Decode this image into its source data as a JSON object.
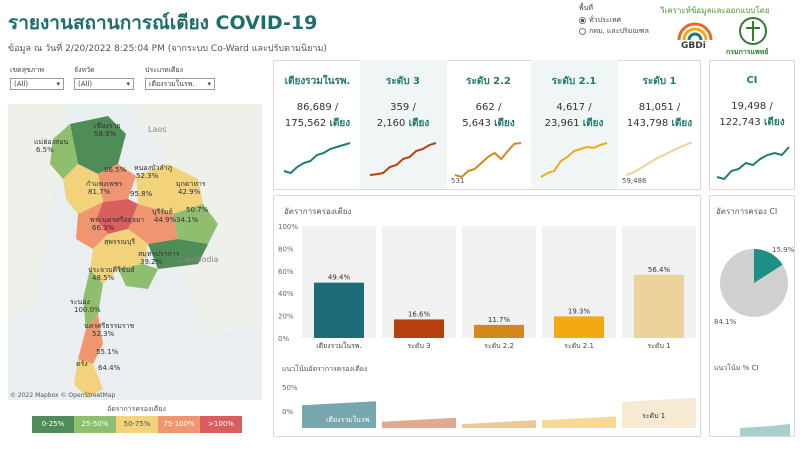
{
  "header": {
    "title": "รายงานสถานการณ์เตียง COVID-19",
    "subtitle": "ข้อมูล ณ วันที่ 2/20/2022 8:25:04 PM  (จากระบบ Co-Ward และปรับตามนิยาม)",
    "area_label": "พื้นที่",
    "area_options": [
      "ทั่วประเทศ",
      "กทม. และปริมณฑล"
    ],
    "credit": "วิเคราะห์ข้อมูลและออกแบบโดย",
    "logo_gbdi": "GBDi",
    "logo_moph": "กรมการแพทย์"
  },
  "filters": [
    {
      "label": "เขตสุขภาพ",
      "value": "(All)"
    },
    {
      "label": "จังหวัด",
      "value": "(All)"
    },
    {
      "label": "ประเภทเตียง",
      "value": "เตียงรวมในรพ."
    }
  ],
  "map": {
    "country_labels": [
      "Laos",
      "Cambodia"
    ],
    "provinces": [
      {
        "name": "เชียงราย",
        "pct": "58.9%"
      },
      {
        "name": "แม่ฮ่องสอน",
        "pct": "6.5%"
      },
      {
        "name": "",
        "pct": "86.5%"
      },
      {
        "name": "หนองบัวลำภู",
        "pct": "52.3%"
      },
      {
        "name": "กำแพงเพชร",
        "pct": "81.7%"
      },
      {
        "name": "",
        "pct": "95.8%"
      },
      {
        "name": "มุกดาหาร",
        "pct": "42.9%"
      },
      {
        "name": "",
        "pct": "50.7%"
      },
      {
        "name": "พระนครศรีอยุธยา",
        "pct": "66.3%"
      },
      {
        "name": "บุรีรัมย์",
        "pct": "44.9%"
      },
      {
        "name": "",
        "pct": "34.1%"
      },
      {
        "name": "สุพรรณบุรี",
        "pct": ""
      },
      {
        "name": "สมุทรปราการ",
        "pct": "39.2%"
      },
      {
        "name": "ประจวบคีรีขันธ์",
        "pct": "48.5%"
      },
      {
        "name": "ระนอง",
        "pct": "100.0%"
      },
      {
        "name": "นครศรีธรรมราช",
        "pct": "52.3%"
      },
      {
        "name": "",
        "pct": "55.1%"
      },
      {
        "name": "ตรัง",
        "pct": "64.4%"
      }
    ],
    "attribution": "© 2022 Mapbox © OpenStreetMap",
    "legend_title": "อัตราการครองเตียง",
    "legend": [
      {
        "label": "0-25%",
        "color": "#4f8c57"
      },
      {
        "label": "25-50%",
        "color": "#8fbf6e"
      },
      {
        "label": "50-75%",
        "color": "#f2d27a"
      },
      {
        "label": "75-100%",
        "color": "#ef9670"
      },
      {
        "label": ">100%",
        "color": "#d95f5f"
      }
    ]
  },
  "stats": [
    {
      "title": "เตียงรวมในรพ.",
      "occupied": "86,689 /",
      "total": "175,562",
      "unit": "เตียง",
      "color": "#1e7b78",
      "spark": [
        0.2,
        0.15,
        0.3,
        0.4,
        0.45,
        0.6,
        0.65,
        0.75,
        0.8,
        0.85,
        0.9
      ],
      "label": ""
    },
    {
      "title": "ระดับ 3",
      "occupied": "359 /",
      "total": "2,160",
      "unit": "เตียง",
      "color": "#b8400e",
      "spark": [
        0.1,
        0.12,
        0.15,
        0.3,
        0.35,
        0.5,
        0.55,
        0.7,
        0.75,
        0.85,
        0.9
      ],
      "label": ""
    },
    {
      "title": "ระดับ 2.2",
      "occupied": "662 /",
      "total": "5,643",
      "unit": "เตียง",
      "color": "#d4871c",
      "spark": [
        0.1,
        0.05,
        0.2,
        0.25,
        0.4,
        0.55,
        0.65,
        0.5,
        0.7,
        0.88,
        0.9
      ],
      "label": "531"
    },
    {
      "title": "ระดับ 2.1",
      "occupied": "4,617 /",
      "total": "23,961",
      "unit": "เตียง",
      "color": "#f2a913",
      "spark": [
        0.05,
        0.15,
        0.2,
        0.45,
        0.55,
        0.7,
        0.75,
        0.8,
        0.78,
        0.85,
        0.9
      ],
      "label": ""
    },
    {
      "title": "ระดับ 1",
      "occupied": "81,051 /",
      "total": "143,798",
      "unit": "เตียง",
      "color": "#ecd39b",
      "spark": [
        0.1,
        0.15,
        0.25,
        0.35,
        0.45,
        0.55,
        0.62,
        0.7,
        0.78,
        0.85,
        0.92
      ],
      "label": "59,486"
    }
  ],
  "ci": {
    "title": "CI",
    "occupied": "19,498 /",
    "total": "122,743",
    "unit": "เตียง",
    "color": "#1e7b78",
    "spark": [
      0.15,
      0.1,
      0.3,
      0.35,
      0.5,
      0.45,
      0.6,
      0.7,
      0.75,
      0.7,
      0.9
    ]
  },
  "occupancy": {
    "title": "อัตราการครองเตียง",
    "y_ticks": [
      "100%",
      "80%",
      "60%",
      "40%",
      "20%",
      "0%"
    ],
    "bars": [
      {
        "label": "เตียงรวมในรพ.",
        "value": 49.4,
        "text": "49.4%",
        "color": "#1d6b78"
      },
      {
        "label": "ระดับ 3",
        "value": 16.6,
        "text": "16.6%",
        "color": "#b8400e"
      },
      {
        "label": "ระดับ 2.2",
        "value": 11.7,
        "text": "11.7%",
        "color": "#d4871c"
      },
      {
        "label": "ระดับ 2.1",
        "value": 19.3,
        "text": "19.3%",
        "color": "#f2a913"
      },
      {
        "label": "ระดับ 1",
        "value": 56.4,
        "text": "56.4%",
        "color": "#ecd39b"
      }
    ]
  },
  "trend": {
    "title": "แนวโน้มอัตราการครองเตียง",
    "y_ticks": [
      "50%",
      "0%"
    ],
    "labels": [
      "เตียงรวมในรพ.",
      "ระดับ 1"
    ]
  },
  "ci_occupancy": {
    "title": "อัตราการครอง CI",
    "slice_pct": "15.9%",
    "rest_pct": "84.1%",
    "slice_value": 15.9,
    "trend_title": "แนวโน้ม % CI"
  }
}
